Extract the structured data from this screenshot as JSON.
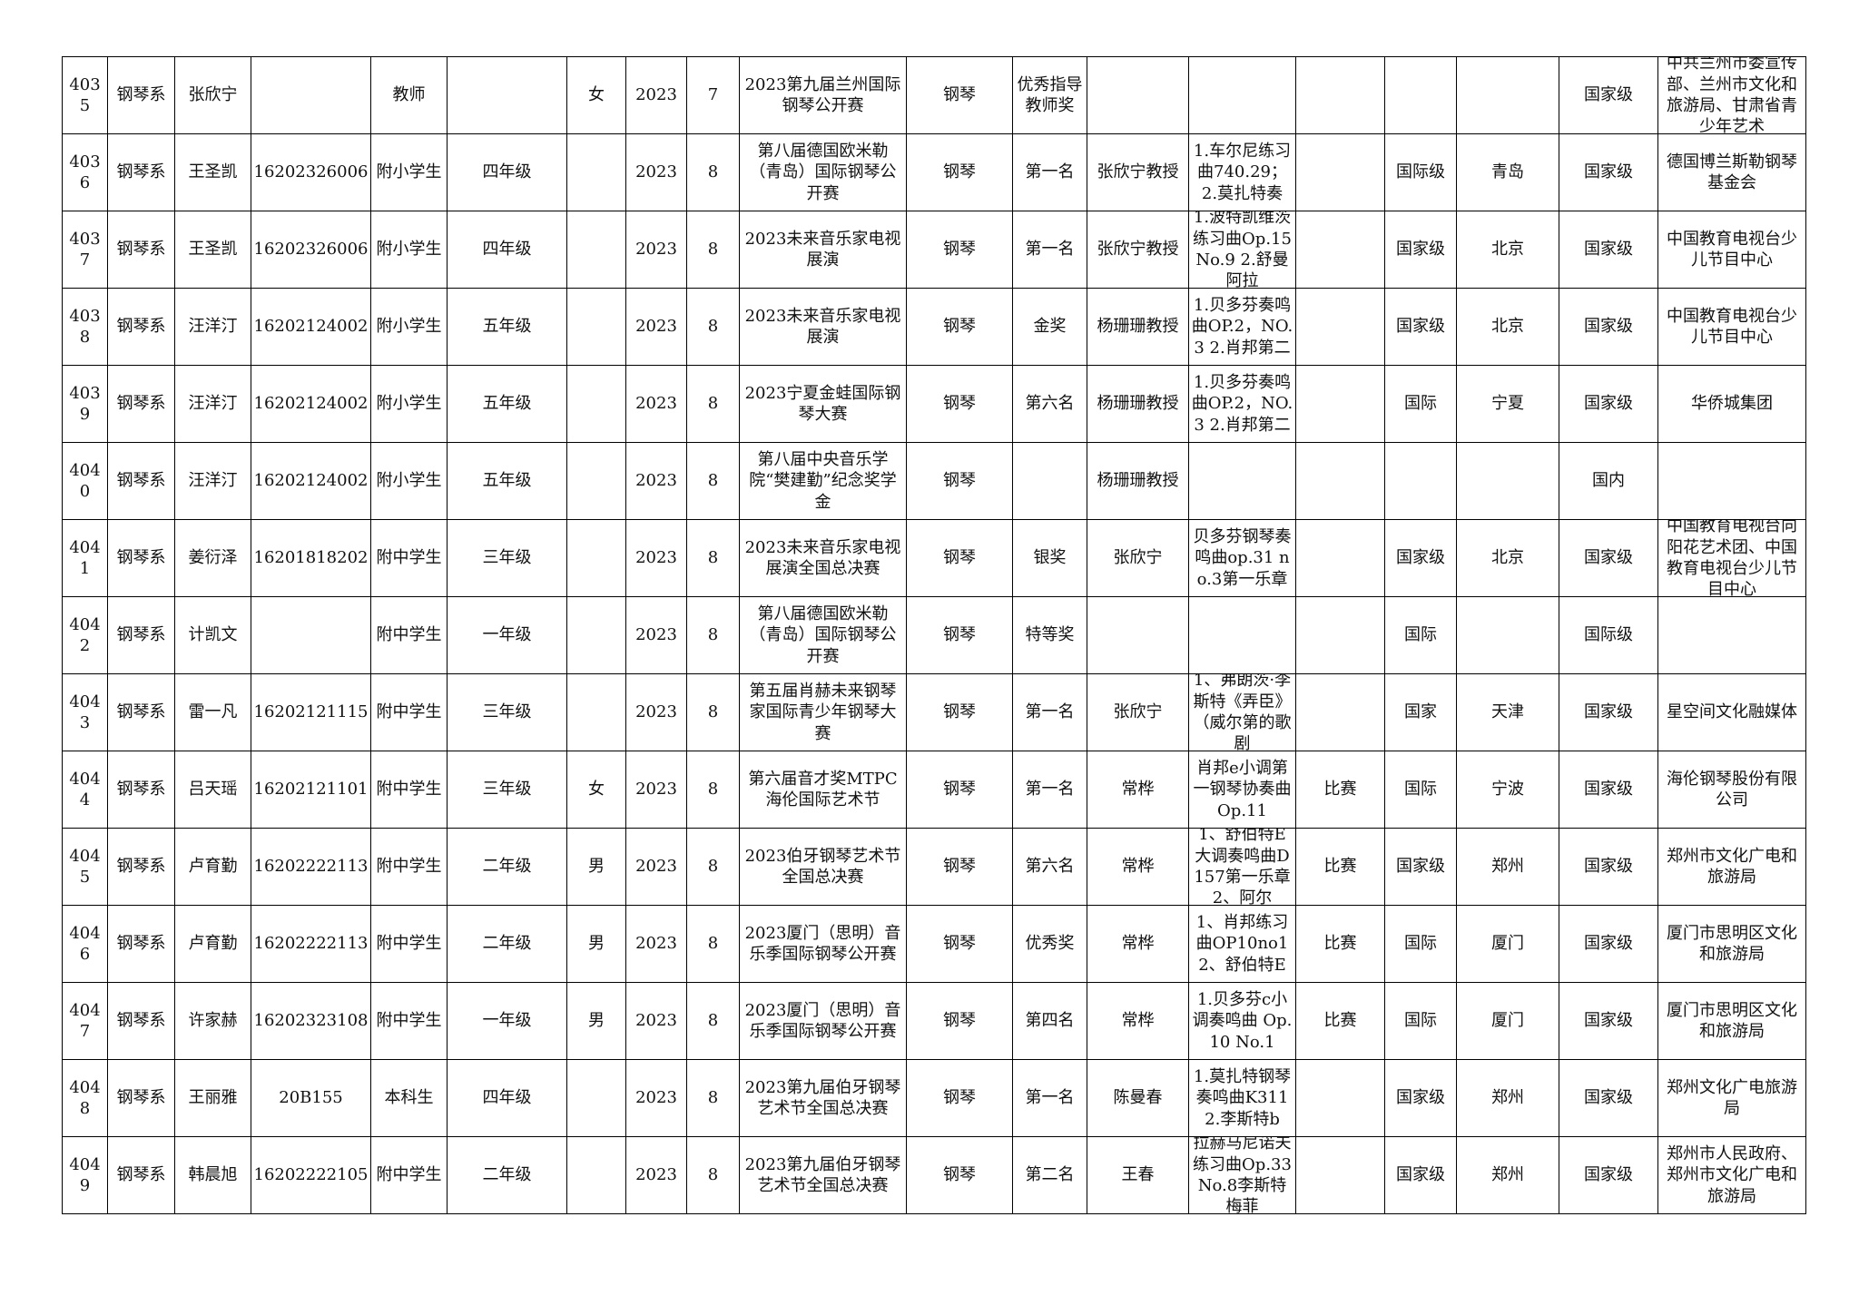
{
  "table": {
    "rows": [
      [
        4035,
        "钢琴系",
        "张欣宁",
        null,
        "教师",
        null,
        "女",
        2023,
        7,
        "2023第九届兰州国际钢琴公开赛",
        "钢琴",
        "优秀指导教师奖",
        null,
        null,
        null,
        null,
        null,
        "国家级",
        "中共兰州市委宣传部、兰州市文化和旅游局、甘肃省青少年艺术"
      ],
      [
        4036,
        "钢琴系",
        "王圣凯",
        "16202326006",
        "附小学生",
        "四年级",
        null,
        2023,
        8,
        "第八届德国欧米勒（青岛）国际钢琴公开赛",
        "钢琴",
        "第一名",
        "张欣宁教授",
        "1.车尔尼练习曲740.29；2.莫扎特奏",
        null,
        "国际级",
        "青岛",
        "国家级",
        "德国博兰斯勒钢琴基金会"
      ],
      [
        4037,
        "钢琴系",
        "王圣凯",
        "16202326006",
        "附小学生",
        "四年级",
        null,
        2023,
        8,
        "2023未来音乐家电视展演",
        "钢琴",
        "第一名",
        "张欣宁教授",
        "1.波特凯维茨练习曲Op.15 No.9 2.舒曼阿拉",
        null,
        "国家级",
        "北京",
        "国家级",
        "中国教育电视台少儿节目中心"
      ],
      [
        4038,
        "钢琴系",
        "汪洋汀",
        "16202124002",
        "附小学生",
        "五年级",
        null,
        2023,
        8,
        "2023未来音乐家电视展演",
        "钢琴",
        "金奖",
        "杨珊珊教授",
        "1.贝多芬奏鸣曲OP.2，NO.3 2.肖邦第二",
        null,
        "国家级",
        "北京",
        "国家级",
        "中国教育电视台少儿节目中心"
      ],
      [
        4039,
        "钢琴系",
        "汪洋汀",
        "16202124002",
        "附小学生",
        "五年级",
        null,
        2023,
        8,
        "2023宁夏金蛙国际钢琴大赛",
        "钢琴",
        "第六名",
        "杨珊珊教授",
        "1.贝多芬奏鸣曲OP.2，NO.3 2.肖邦第二",
        null,
        "国际",
        "宁夏",
        "国家级",
        "华侨城集团"
      ],
      [
        4040,
        "钢琴系",
        "汪洋汀",
        "16202124002",
        "附小学生",
        "五年级",
        null,
        2023,
        8,
        "第八届中央音乐学院“樊建勤”纪念奖学金",
        "钢琴",
        null,
        "杨珊珊教授",
        null,
        null,
        null,
        null,
        "国内",
        null
      ],
      [
        4041,
        "钢琴系",
        "姜衍泽",
        "16201818202",
        "附中学生",
        "三年级",
        null,
        2023,
        8,
        "2023未来音乐家电视展演全国总决赛",
        "钢琴",
        "银奖",
        "张欣宁",
        "贝多芬钢琴奏鸣曲op.31 no.3第一乐章",
        null,
        "国家级",
        "北京",
        "国家级",
        "中国教育电视台向阳花艺术团、中国教育电视台少儿节目中心"
      ],
      [
        4042,
        "钢琴系",
        "计凯文",
        null,
        "附中学生",
        "一年级",
        null,
        2023,
        8,
        "第八届德国欧米勒（青岛）国际钢琴公开赛",
        "钢琴",
        "特等奖",
        null,
        null,
        null,
        "国际",
        null,
        "国际级",
        null
      ],
      [
        4043,
        "钢琴系",
        "雷一凡",
        "16202121115",
        "附中学生",
        "三年级",
        null,
        2023,
        8,
        "第五届肖赫未来钢琴家国际青少年钢琴大赛",
        "钢琴",
        "第一名",
        "张欣宁",
        "1、弗朗茨·李斯特《弄臣》（威尔第的歌剧",
        null,
        "国家",
        "天津",
        "国家级",
        "星空间文化融媒体"
      ],
      [
        4044,
        "钢琴系",
        "吕天瑶",
        "16202121101",
        "附中学生",
        "三年级",
        "女",
        2023,
        8,
        "第六届音才奖MTPC海伦国际艺术节",
        "钢琴",
        "第一名",
        "常桦",
        "肖邦e小调第一钢琴协奏曲Op.11",
        "比赛",
        "国际",
        "宁波",
        "国家级",
        "海伦钢琴股份有限公司"
      ],
      [
        4045,
        "钢琴系",
        "卢育勤",
        "16202222113",
        "附中学生",
        "二年级",
        "男",
        2023,
        8,
        "2023伯牙钢琴艺术节全国总决赛",
        "钢琴",
        "第六名",
        "常桦",
        "1、舒伯特E大调奏鸣曲D157第一乐章2、阿尔",
        "比赛",
        "国家级",
        "郑州",
        "国家级",
        "郑州市文化广电和旅游局"
      ],
      [
        4046,
        "钢琴系",
        "卢育勤",
        "16202222113",
        "附中学生",
        "二年级",
        "男",
        2023,
        8,
        "2023厦门（思明）音乐季国际钢琴公开赛",
        "钢琴",
        "优秀奖",
        "常桦",
        "1、肖邦练习曲OP10no1 2、舒伯特E",
        "比赛",
        "国际",
        "厦门",
        "国家级",
        "厦门市思明区文化和旅游局"
      ],
      [
        4047,
        "钢琴系",
        "许家赫",
        "16202323108",
        "附中学生",
        "一年级",
        "男",
        2023,
        8,
        "2023厦门（思明）音乐季国际钢琴公开赛",
        "钢琴",
        "第四名",
        "常桦",
        "1.贝多芬c小调奏鸣曲 Op.10 No.1",
        "比赛",
        "国际",
        "厦门",
        "国家级",
        "厦门市思明区文化和旅游局"
      ],
      [
        4048,
        "钢琴系",
        "王丽雅",
        "20B155",
        "本科生",
        "四年级",
        null,
        2023,
        8,
        "2023第九届伯牙钢琴艺术节全国总决赛",
        "钢琴",
        "第一名",
        "陈曼春",
        "1.莫扎特钢琴奏鸣曲K311 2.李斯特b",
        null,
        "国家级",
        "郑州",
        "国家级",
        "郑州文化广电旅游局"
      ],
      [
        4049,
        "钢琴系",
        "韩晨旭",
        "16202222105",
        "附中学生",
        "二年级",
        null,
        2023,
        8,
        "2023第九届伯牙钢琴艺术节全国总决赛",
        "钢琴",
        "第二名",
        "王春",
        "拉赫马尼诺夫练习曲Op.33No.8李斯特梅菲",
        null,
        "国家级",
        "郑州",
        "国家级",
        "郑州市人民政府、郑州市文化广电和旅游局"
      ]
    ]
  }
}
